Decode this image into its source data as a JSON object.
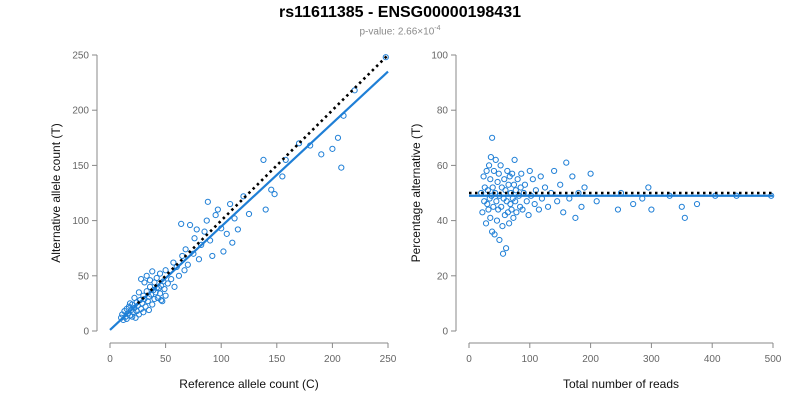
{
  "header": {
    "title": "rs11611385 - ENSG00000198431",
    "pvalue_prefix": "p-value: 2.66×10",
    "pvalue_exp": "-4"
  },
  "colors": {
    "points": "#1f7fd6",
    "fit": "#1f7fd6",
    "reference": "#000000",
    "axis": "#888888"
  },
  "chart_data": [
    {
      "type": "scatter",
      "xlabel": "Reference allele count (C)",
      "ylabel": "Alternative allele count (T)",
      "xlim": [
        0,
        250
      ],
      "ylim": [
        0,
        250
      ],
      "xticks": [
        0,
        50,
        100,
        150,
        200,
        250
      ],
      "yticks": [
        0,
        50,
        100,
        150,
        200,
        250
      ],
      "fit_line": {
        "x": [
          0,
          250
        ],
        "y": [
          1,
          235
        ]
      },
      "reference_line": {
        "x": [
          25,
          250
        ],
        "y": [
          25,
          250
        ]
      },
      "points": [
        [
          10,
          12
        ],
        [
          11,
          15
        ],
        [
          12,
          10
        ],
        [
          13,
          18
        ],
        [
          14,
          13
        ],
        [
          15,
          20
        ],
        [
          15,
          11
        ],
        [
          16,
          16
        ],
        [
          17,
          22
        ],
        [
          18,
          14
        ],
        [
          19,
          19
        ],
        [
          20,
          24
        ],
        [
          20,
          13
        ],
        [
          21,
          17
        ],
        [
          22,
          21
        ],
        [
          23,
          12
        ],
        [
          24,
          26
        ],
        [
          24,
          18
        ],
        [
          25,
          23
        ],
        [
          26,
          15
        ],
        [
          27,
          28
        ],
        [
          28,
          20
        ],
        [
          29,
          25
        ],
        [
          30,
          32
        ],
        [
          30,
          17
        ],
        [
          31,
          29
        ],
        [
          32,
          22
        ],
        [
          33,
          36
        ],
        [
          34,
          27
        ],
        [
          35,
          31
        ],
        [
          35,
          19
        ],
        [
          36,
          40
        ],
        [
          37,
          33
        ],
        [
          38,
          24
        ],
        [
          39,
          37
        ],
        [
          40,
          44
        ],
        [
          40,
          29
        ],
        [
          41,
          35
        ],
        [
          42,
          48
        ],
        [
          43,
          30
        ],
        [
          44,
          39
        ],
        [
          45,
          52
        ],
        [
          45,
          34
        ],
        [
          46,
          41
        ],
        [
          47,
          27
        ],
        [
          48,
          45
        ],
        [
          49,
          38
        ],
        [
          50,
          55
        ],
        [
          50,
          32
        ],
        [
          52,
          43
        ],
        [
          28,
          47
        ],
        [
          33,
          50
        ],
        [
          36,
          46
        ],
        [
          18,
          25
        ],
        [
          22,
          30
        ],
        [
          26,
          35
        ],
        [
          31,
          44
        ],
        [
          38,
          54
        ],
        [
          42,
          39
        ],
        [
          46,
          28
        ],
        [
          55,
          47
        ],
        [
          57,
          62
        ],
        [
          58,
          40
        ],
        [
          60,
          58
        ],
        [
          62,
          50
        ],
        [
          64,
          97
        ],
        [
          65,
          68
        ],
        [
          67,
          55
        ],
        [
          68,
          74
        ],
        [
          70,
          60
        ],
        [
          72,
          96
        ],
        [
          75,
          70
        ],
        [
          76,
          84
        ],
        [
          78,
          92
        ],
        [
          80,
          65
        ],
        [
          82,
          78
        ],
        [
          85,
          90
        ],
        [
          87,
          100
        ],
        [
          88,
          117
        ],
        [
          90,
          82
        ],
        [
          92,
          68
        ],
        [
          95,
          105
        ],
        [
          97,
          110
        ],
        [
          100,
          93
        ],
        [
          102,
          72
        ],
        [
          105,
          88
        ],
        [
          108,
          115
        ],
        [
          110,
          80
        ],
        [
          112,
          102
        ],
        [
          115,
          92
        ],
        [
          120,
          122
        ],
        [
          125,
          106
        ],
        [
          138,
          155
        ],
        [
          140,
          110
        ],
        [
          145,
          128
        ],
        [
          148,
          124
        ],
        [
          155,
          140
        ],
        [
          158,
          155
        ],
        [
          170,
          170
        ],
        [
          180,
          168
        ],
        [
          190,
          160
        ],
        [
          200,
          165
        ],
        [
          205,
          175
        ],
        [
          208,
          148
        ],
        [
          210,
          195
        ],
        [
          220,
          218
        ],
        [
          248,
          248
        ]
      ]
    },
    {
      "type": "scatter",
      "xlabel": "Total number of reads",
      "ylabel": "Percentage alternative (T)",
      "xlim": [
        0,
        500
      ],
      "ylim": [
        0,
        100
      ],
      "xticks": [
        0,
        100,
        200,
        300,
        400,
        500
      ],
      "yticks": [
        0,
        20,
        40,
        60,
        80,
        100
      ],
      "fit_line": {
        "x": [
          0,
          500
        ],
        "y": [
          49,
          49
        ]
      },
      "reference_line": {
        "x": [
          0,
          500
        ],
        "y": [
          50,
          50
        ]
      },
      "points": [
        [
          20,
          50
        ],
        [
          22,
          43
        ],
        [
          24,
          56
        ],
        [
          25,
          47
        ],
        [
          26,
          52
        ],
        [
          28,
          39
        ],
        [
          29,
          58
        ],
        [
          30,
          46
        ],
        [
          31,
          51
        ],
        [
          32,
          44
        ],
        [
          33,
          60
        ],
        [
          34,
          48
        ],
        [
          35,
          55
        ],
        [
          35,
          41
        ],
        [
          36,
          63
        ],
        [
          37,
          49
        ],
        [
          38,
          70
        ],
        [
          38,
          36
        ],
        [
          39,
          52
        ],
        [
          40,
          45
        ],
        [
          41,
          58
        ],
        [
          42,
          35
        ],
        [
          43,
          50
        ],
        [
          44,
          62
        ],
        [
          45,
          47
        ],
        [
          46,
          40
        ],
        [
          47,
          54
        ],
        [
          48,
          44
        ],
        [
          49,
          57
        ],
        [
          50,
          49
        ],
        [
          50,
          33
        ],
        [
          52,
          60
        ],
        [
          53,
          45
        ],
        [
          54,
          52
        ],
        [
          55,
          38
        ],
        [
          56,
          28
        ],
        [
          57,
          48
        ],
        [
          58,
          55
        ],
        [
          59,
          42
        ],
        [
          60,
          51
        ],
        [
          61,
          30
        ],
        [
          62,
          47
        ],
        [
          63,
          58
        ],
        [
          64,
          43
        ],
        [
          65,
          53
        ],
        [
          66,
          39
        ],
        [
          67,
          56
        ],
        [
          68,
          46
        ],
        [
          69,
          50
        ],
        [
          70,
          44
        ],
        [
          71,
          57
        ],
        [
          72,
          48
        ],
        [
          73,
          41
        ],
        [
          74,
          53
        ],
        [
          75,
          62
        ],
        [
          76,
          47
        ],
        [
          77,
          51
        ],
        [
          78,
          43
        ],
        [
          80,
          55
        ],
        [
          82,
          49
        ],
        [
          84,
          45
        ],
        [
          85,
          52
        ],
        [
          86,
          57
        ],
        [
          88,
          44
        ],
        [
          90,
          50
        ],
        [
          92,
          53
        ],
        [
          95,
          47
        ],
        [
          98,
          42
        ],
        [
          100,
          58
        ],
        [
          102,
          49
        ],
        [
          105,
          55
        ],
        [
          108,
          46
        ],
        [
          110,
          51
        ],
        [
          115,
          44
        ],
        [
          118,
          56
        ],
        [
          120,
          48
        ],
        [
          125,
          52
        ],
        [
          130,
          45
        ],
        [
          135,
          50
        ],
        [
          140,
          58
        ],
        [
          145,
          47
        ],
        [
          150,
          53
        ],
        [
          155,
          43
        ],
        [
          160,
          61
        ],
        [
          165,
          48
        ],
        [
          170,
          56
        ],
        [
          175,
          41
        ],
        [
          180,
          50
        ],
        [
          185,
          45
        ],
        [
          190,
          52
        ],
        [
          200,
          57
        ],
        [
          210,
          47
        ],
        [
          245,
          44
        ],
        [
          250,
          50
        ],
        [
          270,
          46
        ],
        [
          285,
          48
        ],
        [
          295,
          52
        ],
        [
          300,
          44
        ],
        [
          330,
          49
        ],
        [
          350,
          45
        ],
        [
          355,
          41
        ],
        [
          375,
          46
        ],
        [
          405,
          49
        ],
        [
          440,
          49
        ],
        [
          497,
          49
        ]
      ]
    }
  ]
}
